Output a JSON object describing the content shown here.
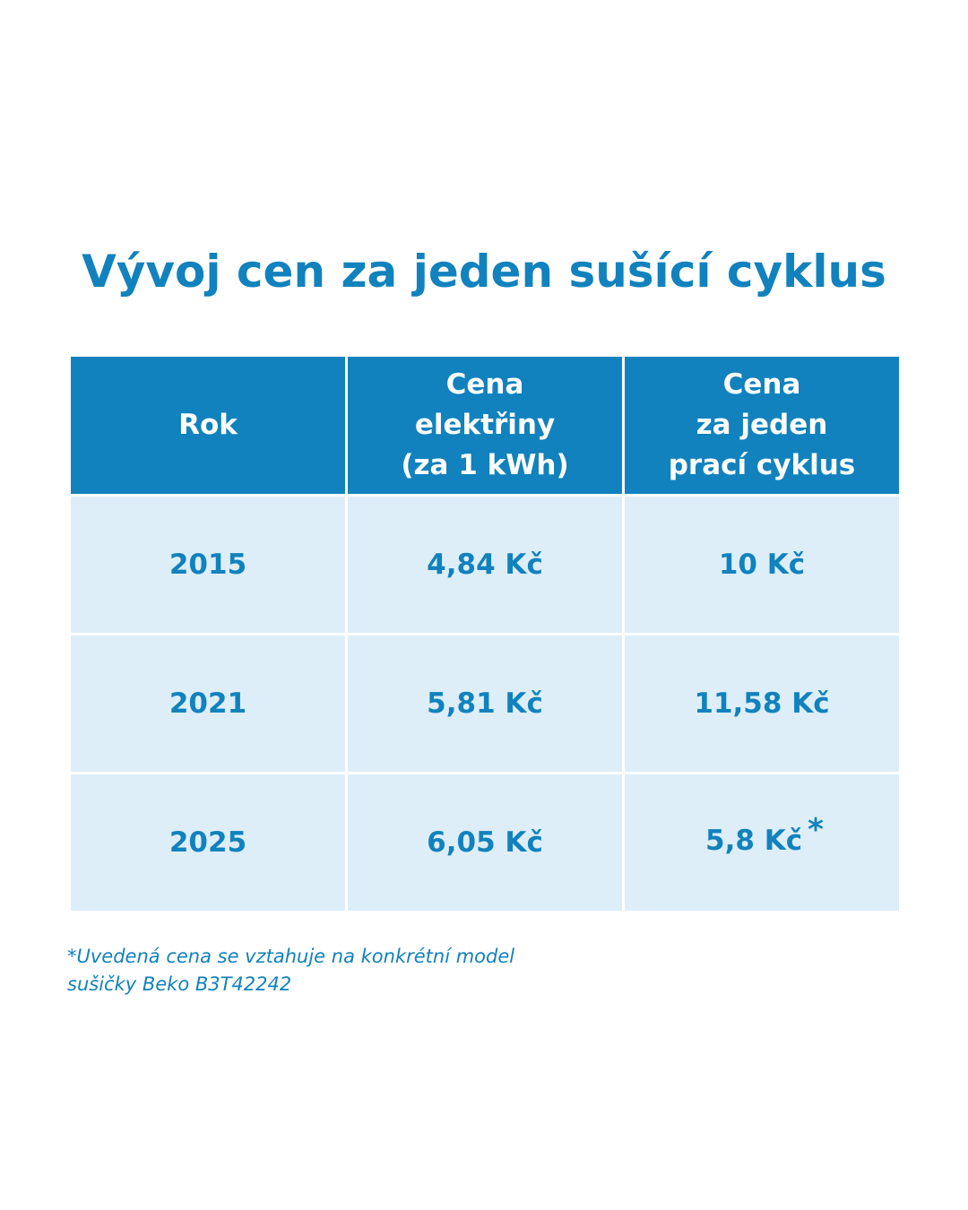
{
  "title": "Vývoj cen za jeden sušící cyklus",
  "table": {
    "headers": [
      {
        "lines": [
          "Rok"
        ]
      },
      {
        "lines": [
          "Cena",
          "elektřiny",
          "(za 1 kWh)"
        ]
      },
      {
        "lines": [
          "Cena",
          "za jeden",
          "prací cyklus"
        ]
      }
    ],
    "rows": [
      {
        "year": "2015",
        "electricity_price": "4,84 Kč",
        "cycle_price": "10 Kč",
        "cycle_note_mark": ""
      },
      {
        "year": "2021",
        "electricity_price": "5,81 Kč",
        "cycle_price": "11,58 Kč",
        "cycle_note_mark": ""
      },
      {
        "year": "2025",
        "electricity_price": "6,05 Kč",
        "cycle_price": "5,8 Kč",
        "cycle_note_mark": "*"
      }
    ]
  },
  "footnote": {
    "lines": [
      "*Uvedená cena se vztahuje na konkrétní model",
      "sušičky Beko B3T42242"
    ]
  },
  "colors": {
    "accent": "#1182bd",
    "row_background": "#ddeef8",
    "header_text": "#ffffff"
  }
}
